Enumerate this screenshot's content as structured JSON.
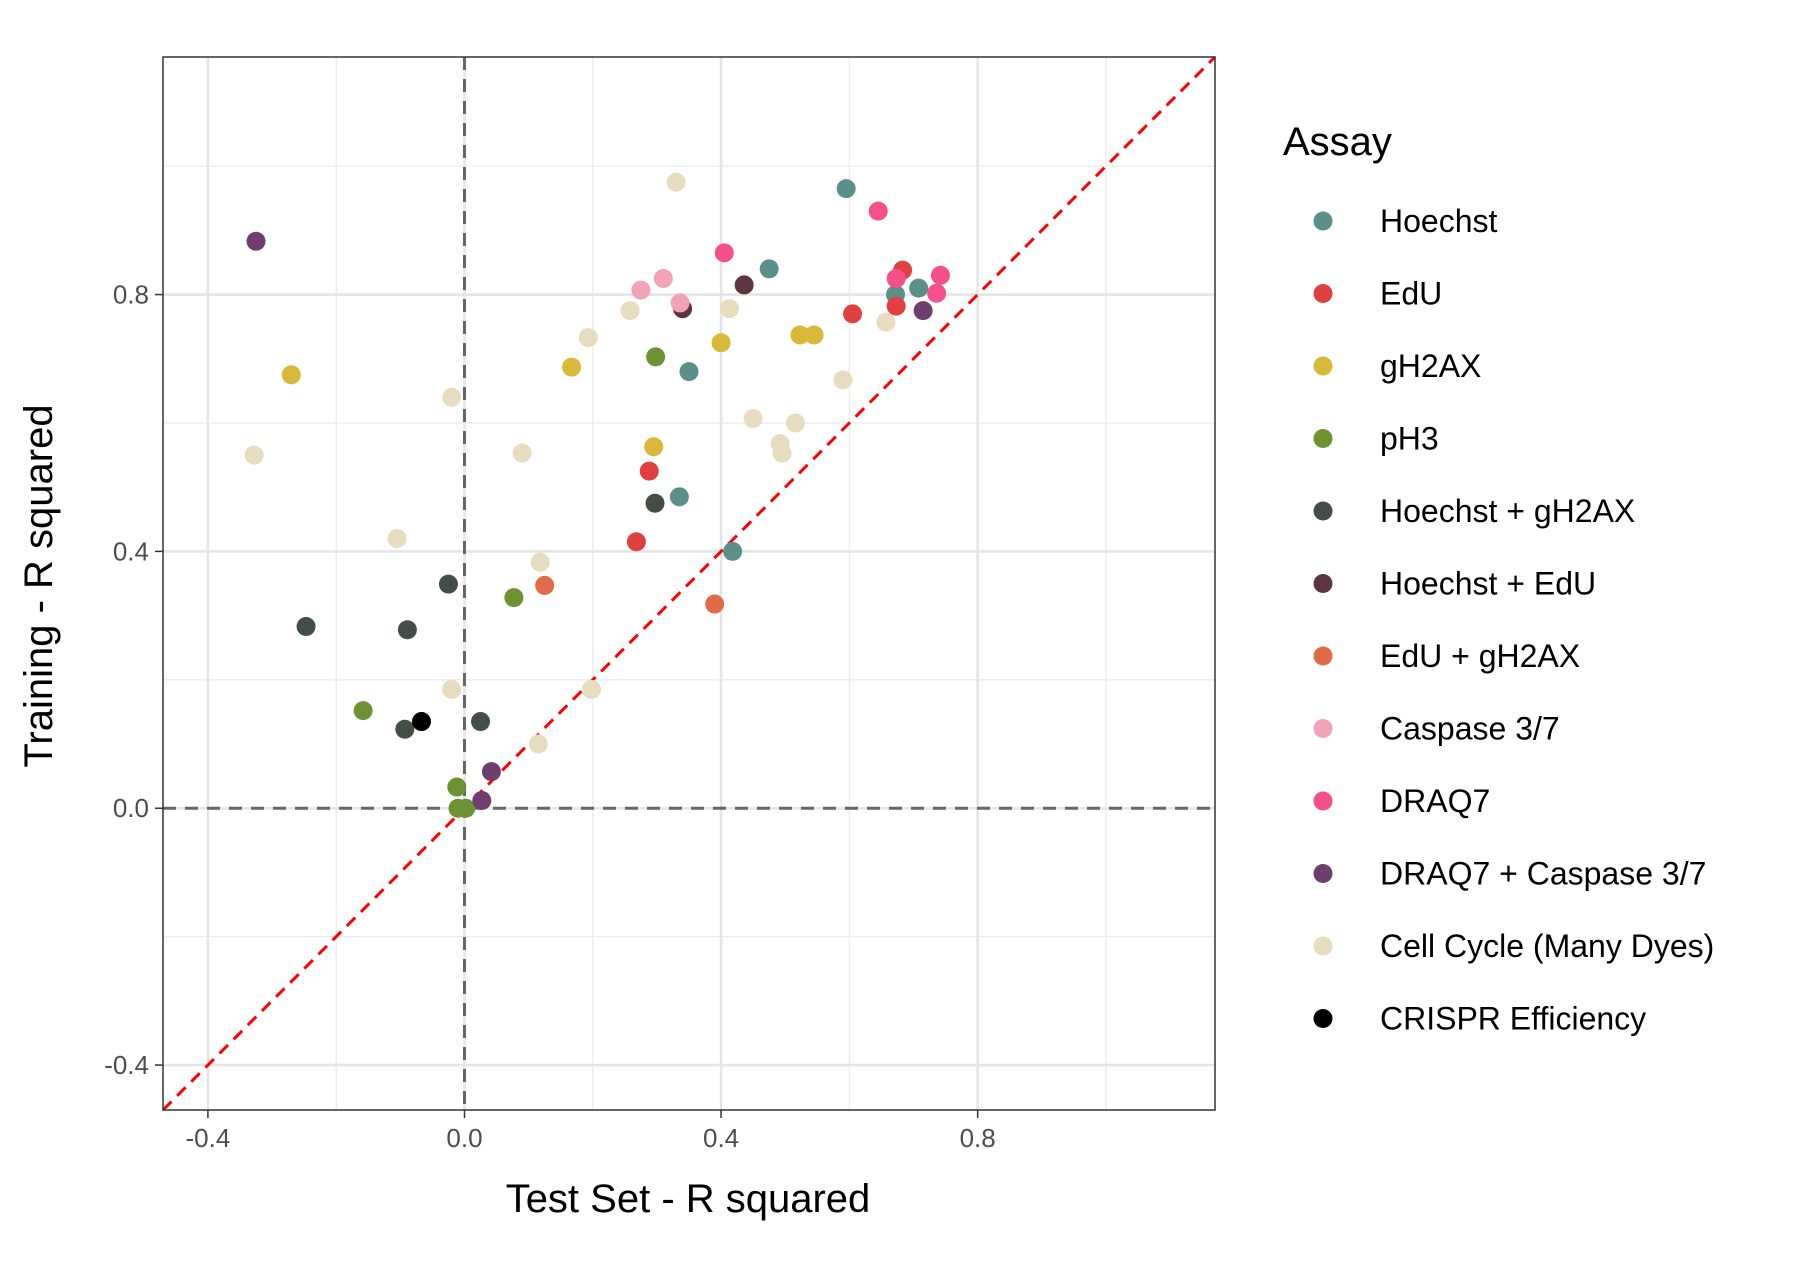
{
  "chart_data": {
    "type": "scatter",
    "xlabel": "Test Set - R squared",
    "ylabel": "Training -  R squared",
    "xlim": [
      -0.47,
      1.17
    ],
    "ylim": [
      -0.47,
      1.17
    ],
    "xticks": [
      -0.4,
      0.0,
      0.4,
      0.8
    ],
    "xtick_labels": [
      "-0.4",
      "0.0",
      "0.4",
      "0.8"
    ],
    "yticks": [
      -0.4,
      0.0,
      0.4,
      0.8
    ],
    "ytick_labels": [
      "-0.4",
      "0.0",
      "0.4",
      "0.8"
    ],
    "minor_grid": [
      -0.2,
      0.2,
      0.6,
      1.0
    ],
    "reference_lines": {
      "vertical": 0.0,
      "horizontal": 0.0,
      "identity": true
    },
    "legend": {
      "title": "Assay",
      "position": "right"
    },
    "series": [
      {
        "name": "Hoechst",
        "color": "#5a8f8a",
        "points": [
          [
            0.595,
            0.965
          ],
          [
            0.475,
            0.84
          ],
          [
            0.708,
            0.81
          ],
          [
            0.672,
            0.8
          ],
          [
            0.35,
            0.68
          ],
          [
            0.335,
            0.485
          ],
          [
            0.418,
            0.4
          ]
        ]
      },
      {
        "name": "EdU",
        "color": "#e04040",
        "points": [
          [
            0.683,
            0.838
          ],
          [
            0.605,
            0.77
          ],
          [
            0.673,
            0.782
          ],
          [
            0.288,
            0.525
          ],
          [
            0.268,
            0.415
          ]
        ]
      },
      {
        "name": "gH2AX",
        "color": "#d9b83a",
        "points": [
          [
            -0.27,
            0.675
          ],
          [
            0.4,
            0.725
          ],
          [
            0.523,
            0.737
          ],
          [
            0.545,
            0.737
          ],
          [
            0.167,
            0.687
          ],
          [
            0.295,
            0.563
          ]
        ]
      },
      {
        "name": "pH3",
        "color": "#6e9132",
        "points": [
          [
            0.298,
            0.703
          ],
          [
            0.077,
            0.328
          ],
          [
            -0.158,
            0.152
          ],
          [
            -0.012,
            0.033
          ],
          [
            -0.01,
            0.0
          ],
          [
            0.002,
            0.0
          ]
        ]
      },
      {
        "name": "Hoechst + gH2AX",
        "color": "#434e46",
        "points": [
          [
            -0.247,
            0.283
          ],
          [
            -0.089,
            0.278
          ],
          [
            -0.025,
            0.349
          ],
          [
            0.297,
            0.475
          ],
          [
            -0.093,
            0.123
          ],
          [
            0.025,
            0.135
          ]
        ]
      },
      {
        "name": "Hoechst + EdU",
        "color": "#5e3440",
        "points": [
          [
            0.436,
            0.815
          ],
          [
            0.34,
            0.778
          ]
        ]
      },
      {
        "name": "EdU + gH2AX",
        "color": "#e06b45",
        "points": [
          [
            0.125,
            0.347
          ],
          [
            0.39,
            0.318
          ]
        ]
      },
      {
        "name": "Caspase 3/7",
        "color": "#f2a3b5",
        "points": [
          [
            0.275,
            0.807
          ],
          [
            0.31,
            0.825
          ],
          [
            0.336,
            0.787
          ]
        ]
      },
      {
        "name": "DRAQ7",
        "color": "#f5508a",
        "points": [
          [
            0.645,
            0.93
          ],
          [
            0.405,
            0.865
          ],
          [
            0.673,
            0.825
          ],
          [
            0.742,
            0.83
          ],
          [
            0.736,
            0.802
          ]
        ]
      },
      {
        "name": "DRAQ7 + Caspase 3/7",
        "color": "#6f3d6e",
        "points": [
          [
            -0.325,
            0.883
          ],
          [
            0.715,
            0.775
          ],
          [
            0.042,
            0.057
          ],
          [
            0.027,
            0.012
          ]
        ]
      },
      {
        "name": "Cell Cycle (Many Dyes)",
        "color": "#e8dcbf",
        "points": [
          [
            0.33,
            0.975
          ],
          [
            0.258,
            0.775
          ],
          [
            0.413,
            0.778
          ],
          [
            0.193,
            0.733
          ],
          [
            0.657,
            0.757
          ],
          [
            0.59,
            0.667
          ],
          [
            -0.02,
            0.64
          ],
          [
            0.45,
            0.607
          ],
          [
            0.516,
            0.6
          ],
          [
            0.492,
            0.568
          ],
          [
            0.495,
            0.553
          ],
          [
            -0.328,
            0.55
          ],
          [
            0.09,
            0.553
          ],
          [
            -0.105,
            0.42
          ],
          [
            0.118,
            0.383
          ],
          [
            -0.02,
            0.185
          ],
          [
            0.198,
            0.185
          ],
          [
            0.115,
            0.1
          ]
        ]
      },
      {
        "name": "CRISPR Efficiency",
        "color": "#000000",
        "points": [
          [
            -0.067,
            0.135
          ]
        ]
      }
    ]
  }
}
